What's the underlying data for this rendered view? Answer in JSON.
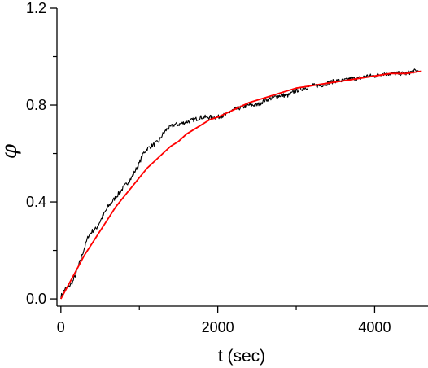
{
  "chart_data": {
    "type": "line",
    "title": "",
    "xlabel": "t (sec)",
    "ylabel": "φ",
    "ylabel_overbar": true,
    "xlim": [
      -50,
      4680
    ],
    "ylim": [
      -0.03,
      1.2
    ],
    "x_ticks": [
      {
        "value": 0,
        "label": "0"
      },
      {
        "value": 2000,
        "label": "2000"
      },
      {
        "value": 4000,
        "label": "4000"
      }
    ],
    "x_minor_ticks": [
      1000,
      3000
    ],
    "y_ticks": [
      {
        "value": 0.0,
        "label": "0.0"
      },
      {
        "value": 0.4,
        "label": "0.4"
      },
      {
        "value": 0.8,
        "label": "0.8"
      },
      {
        "value": 1.2,
        "label": "1.2"
      }
    ],
    "y_minor_ticks": [
      0.2,
      0.6,
      1.0
    ],
    "grid": false,
    "legend": "none",
    "series": [
      {
        "color": "#000000",
        "style": "noisy measurement trace",
        "x": [
          0,
          50,
          100,
          150,
          200,
          250,
          300,
          350,
          400,
          450,
          500,
          550,
          600,
          650,
          700,
          750,
          800,
          850,
          900,
          950,
          1000,
          1050,
          1100,
          1150,
          1200,
          1250,
          1300,
          1350,
          1400,
          1450,
          1500,
          1600,
          1700,
          1800,
          1900,
          2000,
          2100,
          2200,
          2300,
          2400,
          2500,
          2600,
          2700,
          2800,
          2900,
          3000,
          3100,
          3200,
          3300,
          3400,
          3500,
          3600,
          3700,
          3800,
          3900,
          4000,
          4100,
          4200,
          4300,
          4400,
          4500,
          4560
        ],
        "values": [
          0.01,
          0.04,
          0.05,
          0.07,
          0.11,
          0.16,
          0.21,
          0.26,
          0.28,
          0.29,
          0.32,
          0.35,
          0.38,
          0.4,
          0.42,
          0.44,
          0.46,
          0.48,
          0.5,
          0.53,
          0.56,
          0.6,
          0.62,
          0.63,
          0.64,
          0.65,
          0.68,
          0.7,
          0.71,
          0.72,
          0.72,
          0.73,
          0.74,
          0.75,
          0.75,
          0.75,
          0.76,
          0.78,
          0.79,
          0.8,
          0.8,
          0.82,
          0.83,
          0.84,
          0.84,
          0.86,
          0.87,
          0.88,
          0.88,
          0.89,
          0.9,
          0.9,
          0.91,
          0.91,
          0.92,
          0.92,
          0.93,
          0.93,
          0.93,
          0.93,
          0.94,
          0.94
        ]
      },
      {
        "color": "#ff0000",
        "style": "smooth exponential fit",
        "x": [
          0,
          100,
          200,
          300,
          400,
          500,
          600,
          700,
          800,
          900,
          1000,
          1100,
          1200,
          1300,
          1400,
          1500,
          1600,
          1700,
          1800,
          1900,
          2000,
          2200,
          2400,
          2600,
          2800,
          3000,
          3200,
          3400,
          3600,
          3800,
          4000,
          4200,
          4400,
          4600
        ],
        "values": [
          0.0,
          0.06,
          0.12,
          0.18,
          0.23,
          0.28,
          0.33,
          0.38,
          0.42,
          0.46,
          0.5,
          0.54,
          0.57,
          0.6,
          0.63,
          0.65,
          0.68,
          0.7,
          0.72,
          0.74,
          0.75,
          0.78,
          0.81,
          0.83,
          0.85,
          0.87,
          0.88,
          0.89,
          0.9,
          0.91,
          0.92,
          0.93,
          0.93,
          0.94
        ]
      }
    ]
  }
}
